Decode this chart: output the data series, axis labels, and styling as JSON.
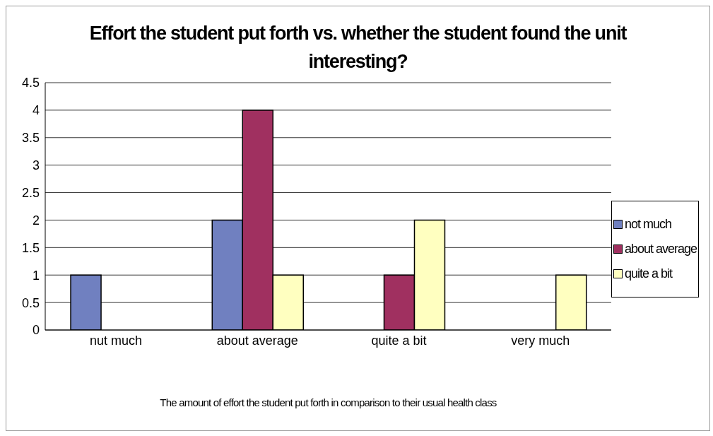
{
  "chart_data": {
    "type": "bar",
    "title": "Effort the student put forth vs. whether the student found the unit interesting?",
    "xlabel": "The amount of effort the student put forth in comparison to their usual health class",
    "categories": [
      "nut much",
      "about average",
      "quite a bit",
      "very much"
    ],
    "series": [
      {
        "name": "not much",
        "color": "#7080c0",
        "values": [
          1,
          2,
          0,
          0
        ]
      },
      {
        "name": "about average",
        "color": "#a03060",
        "values": [
          0,
          4,
          1,
          0
        ]
      },
      {
        "name": "quite a bit",
        "color": "#ffffc0",
        "values": [
          0,
          1,
          2,
          1
        ]
      }
    ],
    "ylim": [
      0,
      4.5
    ],
    "yticks": [
      0,
      0.5,
      1,
      1.5,
      2,
      2.5,
      3,
      3.5,
      4,
      4.5
    ],
    "grid": "y",
    "legend": "right"
  }
}
